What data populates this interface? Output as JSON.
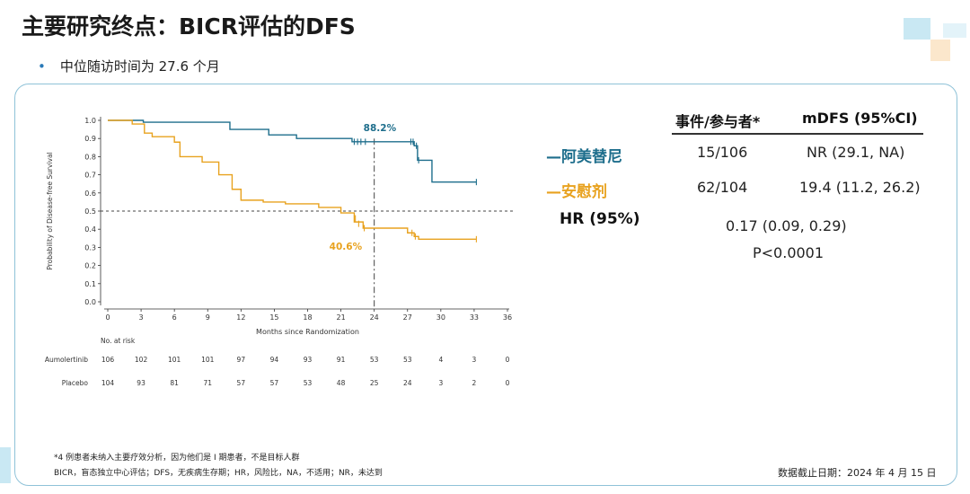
{
  "slide": {
    "title": "主要研究终点：BICR评估的DFS",
    "bullet": "中位随访时间为 27.6 个月"
  },
  "summary": {
    "headers": {
      "events": "事件/参与者*",
      "mdfs": "mDFS (95%CI)"
    },
    "arms": [
      {
        "name": "—阿美替尼",
        "events": "15/106",
        "mdfs": "NR (29.1, NA)",
        "color": "#1e6e8c"
      },
      {
        "name": "—安慰剂",
        "events": "62/104",
        "mdfs": "19.4 (11.2, 26.2)",
        "color": "#e8a21f"
      }
    ],
    "hr_label": "HR (95%)",
    "hr_value": "0.17 (0.09, 0.29)",
    "p_value": "P<0.0001"
  },
  "chart_data": {
    "type": "line",
    "xlabel": "Months since Randomization",
    "ylabel": "Probability of Disease-free Survival",
    "xticks": [
      0,
      3,
      6,
      9,
      12,
      15,
      18,
      21,
      24,
      27,
      30,
      33,
      36
    ],
    "yticks": [
      0.0,
      0.1,
      0.2,
      0.3,
      0.4,
      0.5,
      0.6,
      0.7,
      0.8,
      0.9,
      1.0
    ],
    "xlim": [
      0,
      36
    ],
    "ylim": [
      0,
      1.0
    ],
    "reference_line_y": 0.5,
    "reference_line_x": 24,
    "annotations": [
      {
        "text": "88.2%",
        "series": "Aumolertinib",
        "x": 24,
        "y": 0.882
      },
      {
        "text": "40.6%",
        "series": "Placebo",
        "x": 24,
        "y": 0.406
      }
    ],
    "series": [
      {
        "name": "Aumolertinib",
        "color": "#1e6e8c",
        "x": [
          0,
          3.2,
          11,
          14.5,
          17,
          22,
          27.6,
          27.9,
          29.2,
          33.2
        ],
        "y": [
          1.0,
          0.99,
          0.95,
          0.92,
          0.9,
          0.882,
          0.86,
          0.78,
          0.66,
          0.66
        ],
        "censor_x": [
          22.2,
          22.5,
          22.8,
          23.2,
          27.3,
          27.5,
          27.8,
          28.0,
          33.2
        ],
        "censor_y": [
          0.882,
          0.882,
          0.882,
          0.882,
          0.882,
          0.882,
          0.86,
          0.78,
          0.66
        ]
      },
      {
        "name": "Placebo",
        "color": "#e8a21f",
        "x": [
          0,
          2.2,
          3.3,
          4,
          6,
          6.5,
          8.5,
          10,
          11.2,
          12,
          14,
          16,
          19,
          21,
          22.2,
          23,
          27,
          27.6,
          28,
          33.2
        ],
        "y": [
          1.0,
          0.98,
          0.93,
          0.91,
          0.88,
          0.8,
          0.77,
          0.7,
          0.62,
          0.56,
          0.55,
          0.54,
          0.52,
          0.49,
          0.44,
          0.406,
          0.38,
          0.36,
          0.345,
          0.345
        ],
        "censor_x": [
          22.3,
          22.6,
          23.1,
          27.4,
          27.7,
          33.2
        ],
        "censor_y": [
          0.46,
          0.43,
          0.406,
          0.38,
          0.36,
          0.345
        ]
      }
    ],
    "risk_table": {
      "title": "No. at risk",
      "rows": [
        {
          "label": "Aumolertinib",
          "values": [
            "106",
            "102",
            "101",
            "101",
            "97",
            "94",
            "93",
            "91",
            "53",
            "53",
            "4",
            "3",
            "0"
          ]
        },
        {
          "label": "Placebo",
          "values": [
            "104",
            "93",
            "81",
            "71",
            "57",
            "57",
            "53",
            "48",
            "25",
            "24",
            "3",
            "2",
            "0"
          ]
        }
      ]
    }
  },
  "footnotes": {
    "line1": "*4 例患者未纳入主要疗效分析，因为他们是 I 期患者，不是目标人群",
    "line2": "BICR，盲态独立中心评估；DFS，无疾病生存期；HR，风险比，NA，不适用；NR，未达到",
    "cutoff": "数据截止日期：2024 年 4 月 15 日"
  },
  "colors": {
    "accent": "#2a7ab8",
    "panel_border": "#8fc2d8"
  }
}
